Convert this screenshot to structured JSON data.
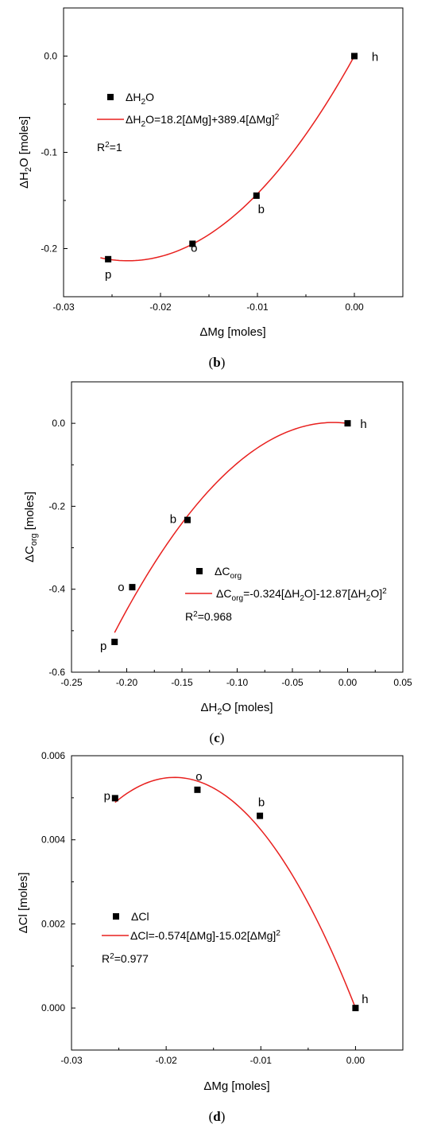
{
  "chart_data": [
    {
      "type": "scatter",
      "caption": "(b)",
      "xlabel": "ΔMg [moles]",
      "ylabel": "ΔH2O [moles]",
      "xlim": [
        -0.03,
        0.005
      ],
      "ylim": [
        -0.25,
        0.05
      ],
      "xticks": [
        -0.03,
        -0.02,
        -0.01,
        0.0
      ],
      "xtick_labels": [
        "-0.03",
        "-0.02",
        "-0.01",
        "0.00"
      ],
      "yticks": [
        -0.2,
        -0.1,
        0.0
      ],
      "ytick_labels": [
        "-0.2",
        "-0.1",
        "0.0"
      ],
      "series": [
        {
          "name": "ΔH2O",
          "marker": "square",
          "points": [
            {
              "x": -0.0254,
              "y": -0.211,
              "label": "p"
            },
            {
              "x": -0.0167,
              "y": -0.195,
              "label": "o"
            },
            {
              "x": -0.0101,
              "y": -0.145,
              "label": "b"
            },
            {
              "x": 0.0,
              "y": 0.0,
              "label": "h"
            }
          ]
        }
      ],
      "fit": {
        "equation": "ΔH2O=18.2[ΔMg]+389.4[ΔMg]2",
        "a": 18.2,
        "b": 389.4,
        "x_range": [
          -0.0262,
          0.0
        ],
        "r2": "R2=1",
        "color": "#e8201e"
      },
      "legend": {
        "position": "upper-left"
      }
    },
    {
      "type": "scatter",
      "caption": "(c)",
      "xlabel": "ΔH2O [moles]",
      "ylabel": "ΔCorg [moles]",
      "xlim": [
        -0.25,
        0.05
      ],
      "ylim": [
        -0.6,
        0.1
      ],
      "xticks": [
        -0.25,
        -0.2,
        -0.15,
        -0.1,
        -0.05,
        0.0,
        0.05
      ],
      "xtick_labels": [
        "-0.25",
        "-0.20",
        "-0.15",
        "-0.10",
        "-0.05",
        "0.00",
        "0.05"
      ],
      "yticks": [
        -0.6,
        -0.4,
        -0.2,
        0.0
      ],
      "ytick_labels": [
        "-0.6",
        "-0.4",
        "-0.2",
        "0.0"
      ],
      "series": [
        {
          "name": "ΔCorg",
          "marker": "square",
          "points": [
            {
              "x": -0.211,
              "y": -0.527,
              "label": "p"
            },
            {
              "x": -0.195,
              "y": -0.395,
              "label": "o"
            },
            {
              "x": -0.145,
              "y": -0.233,
              "label": "b"
            },
            {
              "x": 0.0,
              "y": 0.0,
              "label": "h"
            }
          ]
        }
      ],
      "fit": {
        "equation": "ΔCorg=-0.324[ΔH2O]-12.87[ΔH2O]2",
        "a": -0.324,
        "b": -12.87,
        "x_range": [
          -0.211,
          0.0
        ],
        "r2": "R2=0.968",
        "color": "#e8201e"
      },
      "legend": {
        "position": "center-right"
      }
    },
    {
      "type": "scatter",
      "caption": "(d)",
      "xlabel": "ΔMg [moles]",
      "ylabel": "ΔCl [moles]",
      "xlim": [
        -0.03,
        0.005
      ],
      "ylim": [
        -0.001,
        0.006
      ],
      "xticks": [
        -0.03,
        -0.02,
        -0.01,
        0.0
      ],
      "xtick_labels": [
        "-0.03",
        "-0.02",
        "-0.01",
        "0.00"
      ],
      "yticks": [
        0.0,
        0.002,
        0.004,
        0.006
      ],
      "ytick_labels": [
        "0.000",
        "0.002",
        "0.004",
        "0.006"
      ],
      "series": [
        {
          "name": "ΔCl",
          "marker": "square",
          "points": [
            {
              "x": -0.0254,
              "y": 0.00499,
              "label": "p"
            },
            {
              "x": -0.0167,
              "y": 0.00519,
              "label": "o"
            },
            {
              "x": -0.0101,
              "y": 0.00457,
              "label": "b"
            },
            {
              "x": 0.0,
              "y": 0.0,
              "label": "h"
            }
          ]
        }
      ],
      "fit": {
        "equation": "ΔCl=-0.574[ΔMg]-15.02[ΔMg]2",
        "a": -0.574,
        "b": -15.02,
        "x_range": [
          -0.0254,
          0.0
        ],
        "r2": "R2=0.977",
        "color": "#e8201e"
      },
      "legend": {
        "position": "lower-left"
      }
    }
  ]
}
